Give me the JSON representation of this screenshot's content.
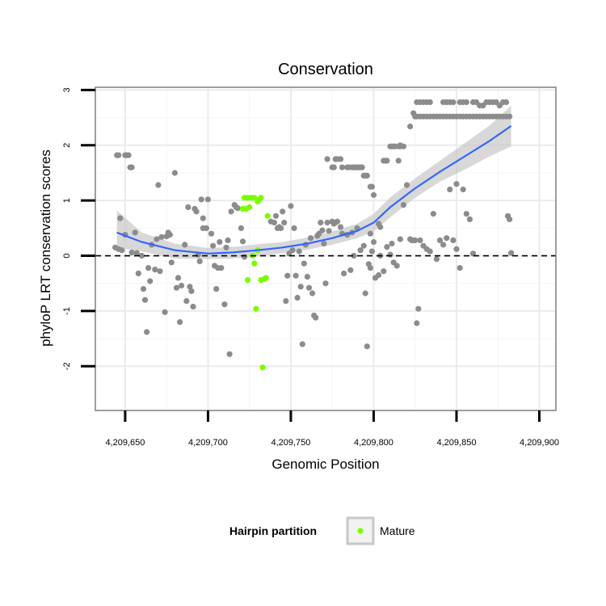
{
  "chart_data": {
    "type": "scatter",
    "title": "Conservation",
    "xlabel": "Genomic Position",
    "ylabel": "phyloP LRT conservation scores",
    "xlim": [
      4209632,
      4209910
    ],
    "ylim": [
      -2.8,
      3.05
    ],
    "x_ticks": [
      4209650,
      4209700,
      4209750,
      4209800,
      4209850,
      4209900
    ],
    "x_tick_labels": [
      "4,209,650",
      "4,209,700",
      "4,209,750",
      "4,209,800",
      "4,209,850",
      "4,209,900"
    ],
    "y_ticks": [
      -2,
      -1,
      0,
      1,
      2,
      3
    ],
    "y_tick_labels": [
      "-2",
      "-1",
      "0",
      "1",
      "2",
      "3"
    ],
    "grid": true,
    "reference_line": {
      "y": 0,
      "style": "dashed"
    },
    "legend": {
      "title": "Hairpin partition",
      "placement": "bottom",
      "entries": [
        "Mature"
      ]
    },
    "colors": {
      "background_points": "#8c8c8c",
      "mature": "#7cfc00",
      "smooth": "#3366ff",
      "ribbon": "#c8c8c8",
      "grid": "#ebebeb",
      "frame": "#7f7f7f"
    },
    "series": [
      {
        "role": "background",
        "points": [
          [
            4209645,
            1.82
          ],
          [
            4209646,
            1.82
          ],
          [
            4209650,
            1.82
          ],
          [
            4209651,
            1.82
          ],
          [
            4209652,
            1.82
          ],
          [
            4209653,
            1.6
          ],
          [
            4209654,
            1.6
          ],
          [
            4209644,
            0.15
          ],
          [
            4209646,
            0.12
          ],
          [
            4209647,
            0.68
          ],
          [
            4209648,
            0.1
          ],
          [
            4209650,
            0.38
          ],
          [
            4209654,
            0.06
          ],
          [
            4209656,
            0.42
          ],
          [
            4209657,
            0.05
          ],
          [
            4209658,
            -0.32
          ],
          [
            4209660,
            0.0
          ],
          [
            4209661,
            -0.6
          ],
          [
            4209662,
            -0.8
          ],
          [
            4209663,
            -1.38
          ],
          [
            4209664,
            -0.22
          ],
          [
            4209665,
            -0.46
          ],
          [
            4209666,
            0.2
          ],
          [
            4209668,
            -0.25
          ],
          [
            4209669,
            0.3
          ],
          [
            4209670,
            1.28
          ],
          [
            4209671,
            -0.28
          ],
          [
            4209672,
            0.34
          ],
          [
            4209674,
            -1.02
          ],
          [
            4209675,
            0.35
          ],
          [
            4209676,
            0.42
          ],
          [
            4209677,
            0.38
          ],
          [
            4209678,
            -0.12
          ],
          [
            4209680,
            1.5
          ],
          [
            4209681,
            -0.58
          ],
          [
            4209682,
            -0.4
          ],
          [
            4209683,
            -1.2
          ],
          [
            4209684,
            -0.54
          ],
          [
            4209686,
            0.2
          ],
          [
            4209687,
            -0.82
          ],
          [
            4209688,
            0.88
          ],
          [
            4209689,
            -0.56
          ],
          [
            4209690,
            -0.64
          ],
          [
            4209691,
            -0.92
          ],
          [
            4209692,
            0.85
          ],
          [
            4209693,
            0.8
          ],
          [
            4209694,
            0.02
          ],
          [
            4209695,
            -0.1
          ],
          [
            4209696,
            1.02
          ],
          [
            4209697,
            0.68
          ],
          [
            4209699,
            0.5
          ],
          [
            4209700,
            1.02
          ],
          [
            4209702,
            0.4
          ],
          [
            4209703,
            0.18
          ],
          [
            4209704,
            -0.18
          ],
          [
            4209705,
            -0.6
          ],
          [
            4209706,
            -0.22
          ],
          [
            4209707,
            0.25
          ],
          [
            4209708,
            -0.22
          ],
          [
            4209710,
            -0.88
          ],
          [
            4209711,
            0.15
          ],
          [
            4209712,
            0.28
          ],
          [
            4209713,
            -1.78
          ],
          [
            4209714,
            0.8
          ],
          [
            4209716,
            0.92
          ],
          [
            4209717,
            0.88
          ],
          [
            4209718,
            0.86
          ],
          [
            4209720,
            0.5
          ],
          [
            4209721,
            0.26
          ],
          [
            4209722,
            -0.02
          ],
          [
            4209738,
            0.62
          ],
          [
            4209740,
            0.6
          ],
          [
            4209741,
            0.72
          ],
          [
            4209742,
            0.5
          ],
          [
            4209743,
            0.52
          ],
          [
            4209744,
            0.5
          ],
          [
            4209745,
            0.8
          ],
          [
            4209746,
            0.6
          ],
          [
            4209747,
            -0.82
          ],
          [
            4209748,
            -0.36
          ],
          [
            4209749,
            0.04
          ],
          [
            4209750,
            0.9
          ],
          [
            4209751,
            0.1
          ],
          [
            4209752,
            0.5
          ],
          [
            4209753,
            -0.36
          ],
          [
            4209754,
            -0.76
          ],
          [
            4209755,
            0.08
          ],
          [
            4209756,
            -0.56
          ],
          [
            4209757,
            -1.6
          ],
          [
            4209758,
            -0.14
          ],
          [
            4209759,
            0.2
          ],
          [
            4209760,
            -0.38
          ],
          [
            4209761,
            -0.58
          ],
          [
            4209762,
            0.32
          ],
          [
            4209763,
            -0.68
          ],
          [
            4209764,
            -1.08
          ],
          [
            4209765,
            -1.12
          ],
          [
            4209766,
            0.36
          ],
          [
            4209767,
            0.4
          ],
          [
            4209768,
            0.6
          ],
          [
            4209769,
            0.46
          ],
          [
            4209770,
            0.22
          ],
          [
            4209771,
            -0.5
          ],
          [
            4209772,
            0.6
          ],
          [
            4209773,
            0.45
          ],
          [
            4209775,
            0.62
          ],
          [
            4209776,
            0.58
          ],
          [
            4209777,
            0.6
          ],
          [
            4209778,
            0.62
          ],
          [
            4209780,
            0.52
          ],
          [
            4209781,
            0.4
          ],
          [
            4209782,
            -0.32
          ],
          [
            4209784,
            0.38
          ],
          [
            4209786,
            -0.26
          ],
          [
            4209787,
            0.42
          ],
          [
            4209788,
            0.0
          ],
          [
            4209790,
            0.5
          ],
          [
            4209792,
            0.1
          ],
          [
            4209794,
            0.18
          ],
          [
            4209795,
            -0.68
          ],
          [
            4209796,
            -1.64
          ],
          [
            4209797,
            -0.15
          ],
          [
            4209798,
            -0.22
          ],
          [
            4209799,
            0.08
          ],
          [
            4209800,
            0.25
          ],
          [
            4209801,
            -0.4
          ],
          [
            4209803,
            -0.35
          ],
          [
            4209804,
            0.0
          ],
          [
            4209806,
            -0.28
          ],
          [
            4209808,
            0.16
          ],
          [
            4209810,
            0.02
          ],
          [
            4209811,
            0.22
          ],
          [
            4209812,
            -0.12
          ],
          [
            4209814,
            -0.18
          ],
          [
            4209816,
            0.3
          ],
          [
            4209818,
            0.92
          ],
          [
            4209820,
            1.28
          ],
          [
            4209822,
            0.3
          ],
          [
            4209823,
            0.28
          ],
          [
            4209824,
            0.28
          ],
          [
            4209825,
            0.28
          ],
          [
            4209826,
            -1.22
          ],
          [
            4209827,
            -0.96
          ],
          [
            4209828,
            0.28
          ],
          [
            4209830,
            0.18
          ],
          [
            4209832,
            0.12
          ],
          [
            4209834,
            0.08
          ],
          [
            4209836,
            0.76
          ],
          [
            4209838,
            -0.06
          ],
          [
            4209840,
            0.28
          ],
          [
            4209842,
            0.2
          ],
          [
            4209844,
            0.32
          ],
          [
            4209846,
            1.2
          ],
          [
            4209848,
            0.28
          ],
          [
            4209850,
            0.12
          ],
          [
            4209852,
            -0.22
          ],
          [
            4209854,
            1.2
          ],
          [
            4209856,
            0.76
          ],
          [
            4209858,
            0.66
          ],
          [
            4209860,
            0.04
          ],
          [
            4209850,
            1.3
          ],
          [
            4209772,
            1.75
          ],
          [
            4209775,
            1.6
          ],
          [
            4209776,
            1.6
          ],
          [
            4209777,
            1.75
          ],
          [
            4209778,
            1.75
          ],
          [
            4209780,
            1.75
          ],
          [
            4209781,
            1.6
          ],
          [
            4209784,
            1.6
          ],
          [
            4209785,
            1.6
          ],
          [
            4209787,
            1.6
          ],
          [
            4209788,
            1.6
          ],
          [
            4209789,
            1.6
          ],
          [
            4209790,
            1.6
          ],
          [
            4209791,
            1.6
          ],
          [
            4209792,
            1.6
          ],
          [
            4209793,
            1.6
          ],
          [
            4209794,
            1.45
          ],
          [
            4209795,
            1.45
          ],
          [
            4209796,
            1.45
          ],
          [
            4209798,
            1.25
          ],
          [
            4209799,
            1.25
          ],
          [
            4209800,
            1.1
          ],
          [
            4209803,
            0.58
          ],
          [
            4209804,
            0.52
          ],
          [
            4209806,
            1.72
          ],
          [
            4209807,
            1.72
          ],
          [
            4209808,
            1.72
          ],
          [
            4209810,
            1.98
          ],
          [
            4209811,
            1.98
          ],
          [
            4209812,
            1.98
          ],
          [
            4209813,
            1.98
          ],
          [
            4209815,
            1.98
          ],
          [
            4209816,
            1.98
          ],
          [
            4209818,
            1.98
          ],
          [
            4209822,
            2.34
          ],
          [
            4209824,
            2.58
          ],
          [
            4209825,
            2.52
          ],
          [
            4209826,
            2.52
          ],
          [
            4209828,
            2.52
          ],
          [
            4209830,
            2.52
          ],
          [
            4209832,
            2.52
          ],
          [
            4209834,
            2.52
          ],
          [
            4209836,
            2.52
          ],
          [
            4209838,
            2.52
          ],
          [
            4209840,
            2.52
          ],
          [
            4209842,
            2.52
          ],
          [
            4209844,
            2.52
          ],
          [
            4209846,
            2.52
          ],
          [
            4209848,
            2.52
          ],
          [
            4209850,
            2.52
          ],
          [
            4209852,
            2.52
          ],
          [
            4209854,
            2.52
          ],
          [
            4209856,
            2.52
          ],
          [
            4209858,
            2.52
          ],
          [
            4209860,
            2.52
          ],
          [
            4209862,
            2.52
          ],
          [
            4209864,
            2.52
          ],
          [
            4209866,
            2.52
          ],
          [
            4209868,
            2.52
          ],
          [
            4209870,
            2.52
          ],
          [
            4209872,
            2.52
          ],
          [
            4209874,
            2.52
          ],
          [
            4209876,
            2.52
          ],
          [
            4209878,
            2.52
          ],
          [
            4209880,
            2.52
          ],
          [
            4209882,
            2.52
          ],
          [
            4209826,
            2.78
          ],
          [
            4209828,
            2.78
          ],
          [
            4209830,
            2.78
          ],
          [
            4209832,
            2.78
          ],
          [
            4209834,
            2.78
          ],
          [
            4209842,
            2.78
          ],
          [
            4209844,
            2.78
          ],
          [
            4209846,
            2.78
          ],
          [
            4209848,
            2.78
          ],
          [
            4209852,
            2.78
          ],
          [
            4209854,
            2.78
          ],
          [
            4209856,
            2.78
          ],
          [
            4209860,
            2.78
          ],
          [
            4209862,
            2.78
          ],
          [
            4209864,
            2.72
          ],
          [
            4209866,
            2.72
          ],
          [
            4209868,
            2.78
          ],
          [
            4209870,
            2.78
          ],
          [
            4209872,
            2.78
          ],
          [
            4209874,
            2.78
          ],
          [
            4209876,
            2.72
          ],
          [
            4209878,
            2.78
          ],
          [
            4209880,
            2.78
          ],
          [
            4209881,
            0.72
          ],
          [
            4209882,
            0.66
          ],
          [
            4209883,
            0.05
          ],
          [
            4209815,
            1.72
          ],
          [
            4209816,
            2.0
          ],
          [
            4209798,
            0.4
          ],
          [
            4209697,
            0.5
          ]
        ]
      },
      {
        "name": "Mature",
        "role": "highlight",
        "points": [
          [
            4209721,
            0.85
          ],
          [
            4209722,
            1.05
          ],
          [
            4209723,
            0.85
          ],
          [
            4209724,
            1.05
          ],
          [
            4209725,
            0.88
          ],
          [
            4209726,
            1.05
          ],
          [
            4209727,
            1.05
          ],
          [
            4209728,
            1.05
          ],
          [
            4209730,
            0.98
          ],
          [
            4209731,
            1.02
          ],
          [
            4209732,
            1.05
          ],
          [
            4209724,
            -0.44
          ],
          [
            4209727,
            0.0
          ],
          [
            4209728,
            -0.14
          ],
          [
            4209730,
            0.1
          ],
          [
            4209732,
            -0.44
          ],
          [
            4209734,
            -0.42
          ],
          [
            4209735,
            -0.4
          ],
          [
            4209736,
            0.72
          ],
          [
            4209733,
            -2.02
          ],
          [
            4209729,
            -0.96
          ]
        ]
      }
    ],
    "smooth": {
      "method": "loess",
      "x": [
        4209645,
        4209660,
        4209680,
        4209700,
        4209715,
        4209730,
        4209745,
        4209760,
        4209775,
        4209790,
        4209800,
        4209810,
        4209825,
        4209840,
        4209855,
        4209870,
        4209883
      ],
      "y": [
        0.42,
        0.25,
        0.1,
        0.04,
        0.06,
        0.1,
        0.15,
        0.22,
        0.32,
        0.45,
        0.6,
        0.88,
        1.22,
        1.52,
        1.8,
        2.08,
        2.35
      ],
      "lower": [
        0.15,
        0.08,
        -0.05,
        -0.06,
        -0.05,
        -0.01,
        0.05,
        0.11,
        0.2,
        0.32,
        0.44,
        0.7,
        1.05,
        1.34,
        1.56,
        1.8,
        1.98
      ],
      "upper": [
        0.82,
        0.42,
        0.22,
        0.14,
        0.16,
        0.21,
        0.25,
        0.33,
        0.44,
        0.58,
        0.76,
        1.06,
        1.4,
        1.72,
        2.04,
        2.36,
        2.72
      ]
    }
  }
}
